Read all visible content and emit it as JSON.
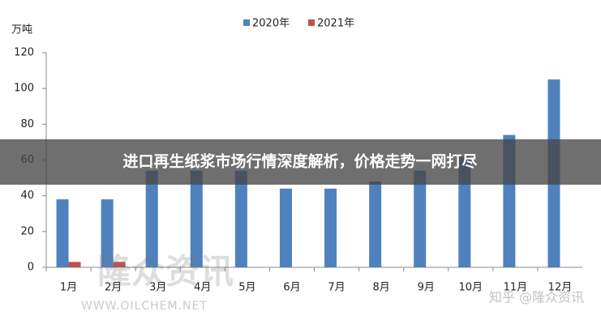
{
  "chart_data": {
    "type": "bar",
    "y_unit": "万吨",
    "categories": [
      "1月",
      "2月",
      "3月",
      "4月",
      "5月",
      "6月",
      "7月",
      "8月",
      "9月",
      "10月",
      "11月",
      "12月"
    ],
    "series": [
      {
        "name": "2020年",
        "color": "#4f81bd",
        "values": [
          38,
          38,
          54,
          54,
          54,
          44,
          44,
          48,
          54,
          62,
          74,
          105
        ]
      },
      {
        "name": "2021年",
        "color": "#c0504d",
        "values": [
          3,
          3,
          null,
          null,
          null,
          null,
          null,
          null,
          null,
          null,
          null,
          null
        ]
      }
    ],
    "ylim": [
      0,
      120
    ],
    "yticks": [
      0,
      20,
      40,
      60,
      80,
      100,
      120
    ],
    "grid": false,
    "legend": "top"
  },
  "banner": "进口再生纸浆市场行情深度解析，价格走势一网打尽",
  "watermarks": [
    "隆众资讯",
    "WWW.OILCHEM.NET",
    "知乎 @隆众资讯"
  ]
}
